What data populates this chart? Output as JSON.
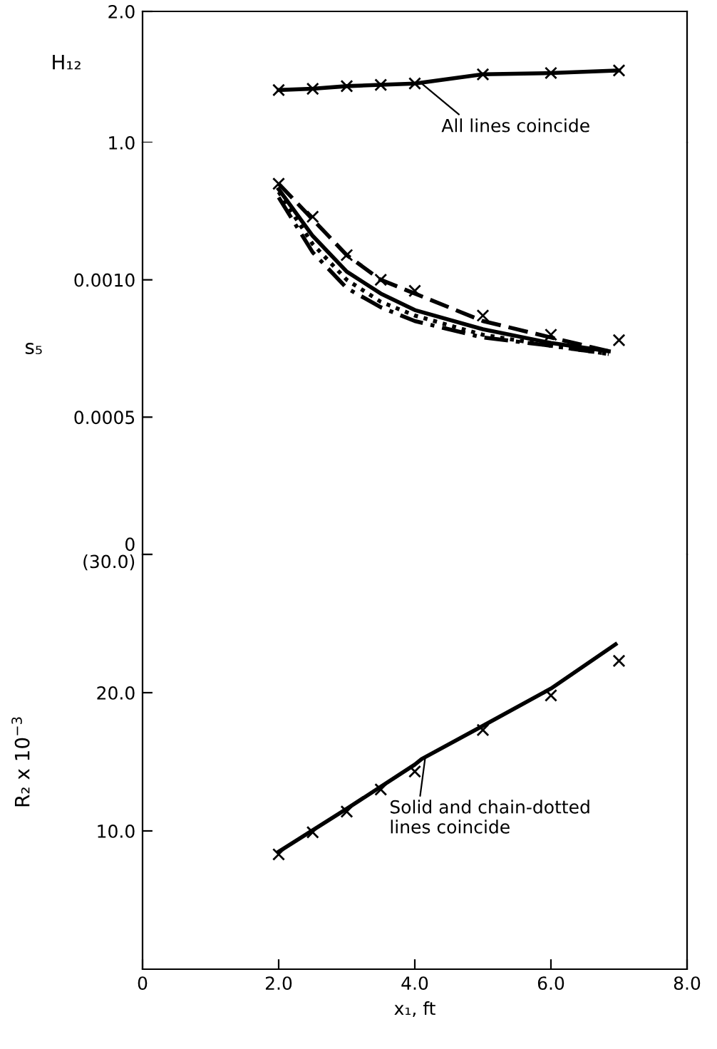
{
  "chart_data": [
    {
      "type": "line",
      "ylabel": "H₁₂",
      "xlim": [
        0,
        8
      ],
      "ylim": [
        1.0,
        2.0
      ],
      "yticks": [
        {
          "value": 1.0,
          "label": "1.0"
        },
        {
          "value": 2.0,
          "label": "2.0"
        }
      ],
      "tick_labels": "y",
      "annotations": [
        {
          "text": "All lines coincide",
          "x": 4.1,
          "y": 1.45
        }
      ],
      "series": [
        {
          "color": "#000000",
          "line_style": "solid",
          "x": [
            2,
            2.5,
            3,
            3.5,
            4,
            5,
            6,
            7
          ],
          "values": [
            1.4,
            1.41,
            1.43,
            1.44,
            1.45,
            1.52,
            1.53,
            1.55
          ]
        },
        {
          "type": "scatter",
          "color": "#000000",
          "marker": "cross",
          "x": [
            2,
            2.5,
            3,
            3.5,
            4,
            5,
            6,
            7
          ],
          "values": [
            1.4,
            1.41,
            1.43,
            1.44,
            1.45,
            1.52,
            1.53,
            1.55
          ]
        }
      ]
    },
    {
      "type": "line",
      "ylabel": "s₅",
      "xlim": [
        0,
        8
      ],
      "ylim": [
        0,
        0.0015
      ],
      "yticks": [
        {
          "value": 0,
          "label": "0"
        },
        {
          "value": 0.0005,
          "label": "0.0005"
        },
        {
          "value": 0.001,
          "label": "0.0010"
        }
      ],
      "tick_labels": "y",
      "series": [
        {
          "color": "#000000",
          "line_style": "dashed",
          "x": [
            2,
            2.5,
            3,
            3.5,
            4,
            5,
            6,
            6.85
          ],
          "values": [
            0.00135,
            0.00122,
            0.00109,
            0.001,
            0.00095,
            0.00085,
            0.00079,
            0.00074
          ]
        },
        {
          "color": "#000000",
          "line_style": "solid",
          "x": [
            2,
            2.5,
            3,
            3.5,
            4,
            5,
            6,
            6.85
          ],
          "values": [
            0.00133,
            0.00116,
            0.00103,
            0.00095,
            0.00089,
            0.00082,
            0.00077,
            0.00074
          ]
        },
        {
          "color": "#000000",
          "line_style": "dotted",
          "x": [
            2,
            2.5,
            3,
            3.5,
            4,
            5,
            6,
            6.85
          ],
          "values": [
            0.00132,
            0.00113,
            0.001,
            0.00092,
            0.00087,
            0.0008,
            0.00076,
            0.00073
          ]
        },
        {
          "color": "#000000",
          "line_style": "dashdot",
          "x": [
            2,
            2.5,
            3,
            3.5,
            4,
            5,
            6,
            6.85
          ],
          "values": [
            0.0013,
            0.0011,
            0.00097,
            0.0009,
            0.00085,
            0.00079,
            0.00076,
            0.00073
          ]
        },
        {
          "type": "scatter",
          "color": "#000000",
          "marker": "cross",
          "x": [
            2,
            2.5,
            3,
            3.5,
            4,
            5,
            6,
            7
          ],
          "values": [
            0.00135,
            0.00123,
            0.00109,
            0.001,
            0.00096,
            0.00087,
            0.0008,
            0.00078
          ]
        }
      ]
    },
    {
      "type": "line",
      "ylabel": "R₂ x 10$^{−3}$",
      "xlabel": "x₁, ft",
      "xlim": [
        0,
        8
      ],
      "xticks": [
        {
          "value": 0,
          "label": "0"
        },
        {
          "value": 2,
          "label": "2.0"
        },
        {
          "value": 4,
          "label": "4.0"
        },
        {
          "value": 6,
          "label": "6.0"
        },
        {
          "value": 8,
          "label": "8.0"
        }
      ],
      "ylim": [
        0,
        30
      ],
      "yticks": [
        {
          "value": 10,
          "label": "10.0"
        },
        {
          "value": 20,
          "label": "20.0"
        },
        {
          "value": 30,
          "label": "(30.0)"
        }
      ],
      "annotations": [
        {
          "text": "Solid and chain-dotted\nlines coincide",
          "x": 4.15,
          "y": 15.2
        }
      ],
      "series": [
        {
          "color": "#000000",
          "line_style": "solid",
          "x": [
            2,
            3,
            4,
            4.1,
            5,
            6,
            6.95
          ],
          "values": [
            8.5,
            11.6,
            14.8,
            15.2,
            17.6,
            20.3,
            23.5
          ]
        },
        {
          "type": "scatter",
          "color": "#000000",
          "marker": "cross",
          "x": [
            2,
            2.5,
            3,
            3.5,
            4,
            5,
            6,
            7
          ],
          "values": [
            8.3,
            9.9,
            11.4,
            13.0,
            14.3,
            17.3,
            19.8,
            22.3
          ]
        }
      ]
    }
  ]
}
